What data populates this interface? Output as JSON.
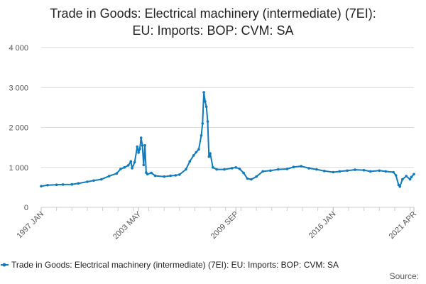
{
  "chart_data": {
    "type": "line",
    "title": [
      "Trade in Goods: Electrical machinery (intermediate) (7EI):",
      "EU: Imports: BOP: CVM: SA"
    ],
    "xlabel": "",
    "ylabel": "",
    "x_tick_labels": [
      "1997 JAN",
      "2003 MAY",
      "2009 SEP",
      "2016 JAN",
      "2021 APR"
    ],
    "y_tick_labels": [
      "0",
      "1 000",
      "2 000",
      "3 000",
      "4 000"
    ],
    "y_ticks": [
      0,
      1000,
      2000,
      3000,
      4000
    ],
    "ylim": [
      0,
      4000
    ],
    "xlim": [
      "1997-01",
      "2021-04"
    ],
    "grid": true,
    "legend_position": "bottom",
    "colors": {
      "series": "#0f7bbd",
      "grid": "#d9d9d9"
    },
    "series": [
      {
        "name": "Trade in Goods: Electrical machinery (intermediate) (7EI): EU: Imports: BOP: CVM: SA",
        "points": [
          [
            "1997-01",
            530
          ],
          [
            "1997-06",
            555
          ],
          [
            "1998-01",
            565
          ],
          [
            "1998-06",
            570
          ],
          [
            "1999-01",
            575
          ],
          [
            "1999-06",
            600
          ],
          [
            "2000-01",
            640
          ],
          [
            "2000-06",
            670
          ],
          [
            "2000-12",
            700
          ],
          [
            "2001-06",
            780
          ],
          [
            "2001-12",
            850
          ],
          [
            "2002-03",
            960
          ],
          [
            "2002-06",
            1000
          ],
          [
            "2002-09",
            1050
          ],
          [
            "2002-11",
            1150
          ],
          [
            "2002-12",
            980
          ],
          [
            "2003-02",
            1130
          ],
          [
            "2003-04",
            1520
          ],
          [
            "2003-05",
            1370
          ],
          [
            "2003-06",
            1460
          ],
          [
            "2003-07",
            1740
          ],
          [
            "2003-08",
            1550
          ],
          [
            "2003-09",
            1060
          ],
          [
            "2003-10",
            1550
          ],
          [
            "2003-11",
            870
          ],
          [
            "2003-12",
            830
          ],
          [
            "2004-03",
            860
          ],
          [
            "2004-06",
            790
          ],
          [
            "2005-01",
            770
          ],
          [
            "2005-06",
            790
          ],
          [
            "2005-10",
            800
          ],
          [
            "2006-01",
            820
          ],
          [
            "2006-06",
            950
          ],
          [
            "2006-09",
            1150
          ],
          [
            "2006-12",
            1300
          ],
          [
            "2007-02",
            1380
          ],
          [
            "2007-04",
            1450
          ],
          [
            "2007-06",
            1800
          ],
          [
            "2007-07",
            2100
          ],
          [
            "2007-08",
            2880
          ],
          [
            "2007-09",
            2650
          ],
          [
            "2007-10",
            2520
          ],
          [
            "2007-11",
            2150
          ],
          [
            "2007-12",
            1270
          ],
          [
            "2008-01",
            1350
          ],
          [
            "2008-03",
            1000
          ],
          [
            "2008-06",
            950
          ],
          [
            "2008-12",
            950
          ],
          [
            "2009-06",
            980
          ],
          [
            "2009-09",
            1000
          ],
          [
            "2009-12",
            960
          ],
          [
            "2010-03",
            860
          ],
          [
            "2010-06",
            720
          ],
          [
            "2010-09",
            700
          ],
          [
            "2011-01",
            770
          ],
          [
            "2011-06",
            900
          ],
          [
            "2011-12",
            920
          ],
          [
            "2012-06",
            950
          ],
          [
            "2013-01",
            960
          ],
          [
            "2013-06",
            1010
          ],
          [
            "2013-12",
            1030
          ],
          [
            "2014-06",
            980
          ],
          [
            "2014-12",
            950
          ],
          [
            "2015-06",
            910
          ],
          [
            "2016-01",
            880
          ],
          [
            "2016-06",
            900
          ],
          [
            "2016-12",
            920
          ],
          [
            "2017-06",
            940
          ],
          [
            "2018-01",
            930
          ],
          [
            "2018-06",
            900
          ],
          [
            "2019-01",
            920
          ],
          [
            "2019-06",
            900
          ],
          [
            "2019-12",
            880
          ],
          [
            "2020-02",
            800
          ],
          [
            "2020-04",
            560
          ],
          [
            "2020-05",
            520
          ],
          [
            "2020-07",
            700
          ],
          [
            "2020-10",
            780
          ],
          [
            "2021-01",
            700
          ],
          [
            "2021-02",
            760
          ],
          [
            "2021-04",
            830
          ]
        ]
      }
    ],
    "source_label": "Source:"
  }
}
